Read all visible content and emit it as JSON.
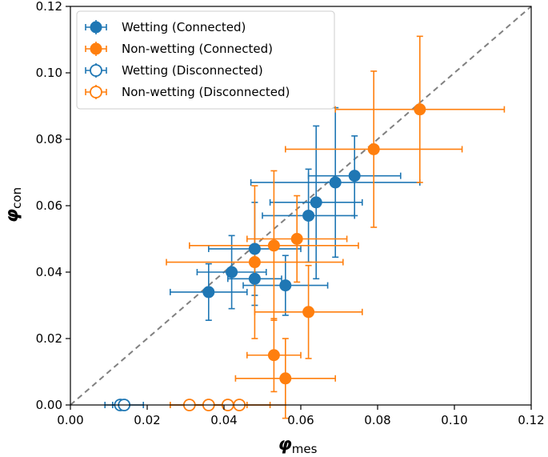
{
  "chart_data": {
    "type": "scatter",
    "title": "",
    "xlabel_symbol": "φ",
    "xlabel_subscript": "mes",
    "ylabel_symbol": "φ",
    "ylabel_subscript": "con",
    "xlim": [
      0.0,
      0.12
    ],
    "ylim": [
      0.0,
      0.12
    ],
    "xticks": [
      0.0,
      0.02,
      0.04,
      0.06,
      0.08,
      0.1,
      0.12
    ],
    "yticks": [
      0.0,
      0.02,
      0.04,
      0.06,
      0.08,
      0.1,
      0.12
    ],
    "xtick_labels": [
      "0.00",
      "0.02",
      "0.04",
      "0.06",
      "0.08",
      "0.10",
      "0.12"
    ],
    "ytick_labels": [
      "0.00",
      "0.02",
      "0.04",
      "0.06",
      "0.08",
      "0.10",
      "0.12"
    ],
    "grid": false,
    "legend_position": "top-left",
    "reference_line": {
      "from": [
        0.0,
        0.0
      ],
      "to": [
        0.12,
        0.12
      ],
      "style": "dashed",
      "color": "#808080"
    },
    "series": [
      {
        "name": "Wetting (Connected)",
        "color": "#1f77b4",
        "filled": true,
        "points": [
          {
            "x": 0.036,
            "y": 0.034,
            "xerr": 0.01,
            "yerr": 0.0085
          },
          {
            "x": 0.042,
            "y": 0.04,
            "xerr": 0.009,
            "yerr": 0.011
          },
          {
            "x": 0.048,
            "y": 0.038,
            "xerr": 0.007,
            "yerr": 0.008
          },
          {
            "x": 0.048,
            "y": 0.047,
            "xerr": 0.012,
            "yerr": 0.014
          },
          {
            "x": 0.056,
            "y": 0.036,
            "xerr": 0.011,
            "yerr": 0.009
          },
          {
            "x": 0.062,
            "y": 0.057,
            "xerr": 0.012,
            "yerr": 0.014
          },
          {
            "x": 0.064,
            "y": 0.061,
            "xerr": 0.012,
            "yerr": 0.023
          },
          {
            "x": 0.069,
            "y": 0.067,
            "xerr": 0.022,
            "yerr": 0.0225
          },
          {
            "x": 0.074,
            "y": 0.069,
            "xerr": 0.012,
            "yerr": 0.012
          }
        ]
      },
      {
        "name": "Non-wetting (Connected)",
        "color": "#ff7f0e",
        "filled": true,
        "points": [
          {
            "x": 0.053,
            "y": 0.015,
            "xerr": 0.007,
            "yerr": 0.011
          },
          {
            "x": 0.056,
            "y": 0.008,
            "xerr": 0.013,
            "yerr": 0.012
          },
          {
            "x": 0.062,
            "y": 0.028,
            "xerr": 0.014,
            "yerr": 0.014
          },
          {
            "x": 0.048,
            "y": 0.043,
            "xerr": 0.023,
            "yerr": 0.023
          },
          {
            "x": 0.053,
            "y": 0.048,
            "xerr": 0.022,
            "yerr": 0.0225
          },
          {
            "x": 0.059,
            "y": 0.05,
            "xerr": 0.013,
            "yerr": 0.013
          },
          {
            "x": 0.079,
            "y": 0.077,
            "xerr": 0.023,
            "yerr": 0.0235
          },
          {
            "x": 0.091,
            "y": 0.089,
            "xerr": 0.022,
            "yerr": 0.022
          }
        ]
      },
      {
        "name": "Wetting (Disconnected)",
        "color": "#1f77b4",
        "filled": false,
        "points": [
          {
            "x": 0.013,
            "y": 0.0,
            "xerr": 0.002,
            "yerr": 0.0
          },
          {
            "x": 0.014,
            "y": 0.0,
            "xerr": 0.005,
            "yerr": 0.0
          }
        ]
      },
      {
        "name": "Non-wetting (Disconnected)",
        "color": "#ff7f0e",
        "filled": false,
        "points": [
          {
            "x": 0.031,
            "y": 0.0,
            "xerr": 0.005,
            "yerr": 0.0
          },
          {
            "x": 0.036,
            "y": 0.0,
            "xerr": 0.01,
            "yerr": 0.0
          },
          {
            "x": 0.041,
            "y": 0.0,
            "xerr": 0.011,
            "yerr": 0.0
          },
          {
            "x": 0.044,
            "y": 0.0,
            "xerr": 0.012,
            "yerr": 0.0
          }
        ]
      }
    ]
  }
}
